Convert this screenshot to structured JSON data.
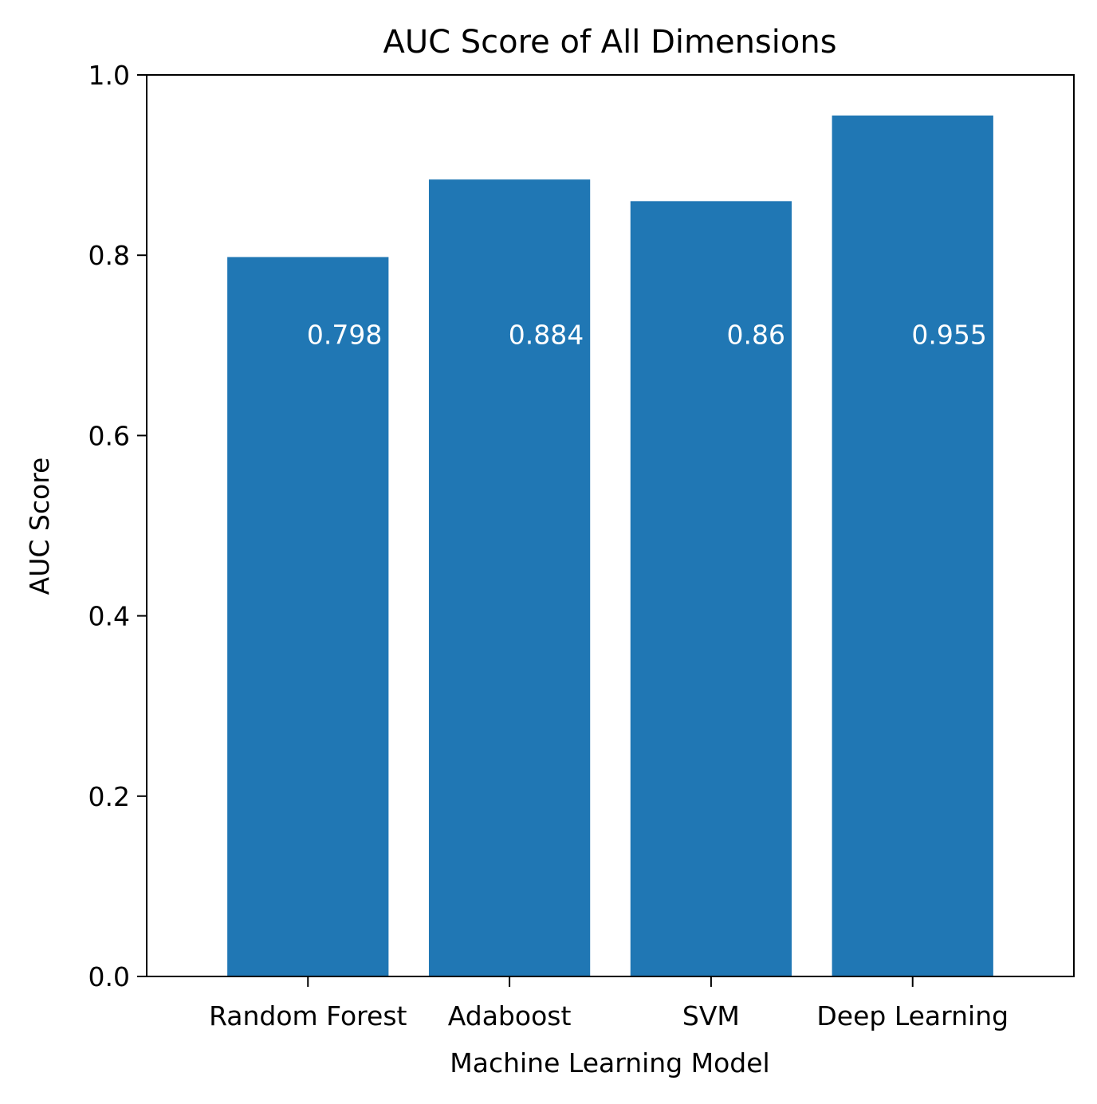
{
  "chart_data": {
    "type": "bar",
    "title": "AUC Score of All Dimensions",
    "xlabel": "Machine Learning Model",
    "ylabel": "AUC Score",
    "categories": [
      "Random Forest",
      "Adaboost",
      "SVM",
      "Deep Learning"
    ],
    "values": [
      0.798,
      0.884,
      0.86,
      0.955
    ],
    "data_labels": [
      "0.798",
      "0.884",
      "0.86",
      "0.955"
    ],
    "ylim": [
      0,
      1.0
    ],
    "yticks": [
      0.0,
      0.2,
      0.4,
      0.6,
      0.8,
      1.0
    ],
    "ytick_labels": [
      "0.0",
      "0.2",
      "0.4",
      "0.6",
      "0.8",
      "1.0"
    ],
    "grid": false,
    "legend": "none",
    "colors": {
      "bar": "#2077b4",
      "data_label": "#ffffff",
      "axes": "#000000"
    }
  }
}
